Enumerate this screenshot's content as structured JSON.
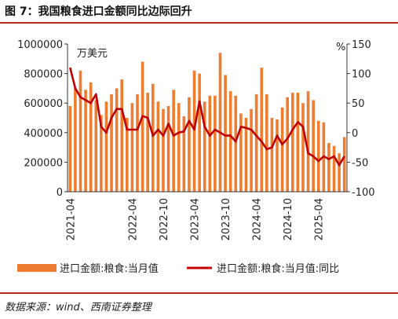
{
  "header": {
    "title": "图 7：我国粮食进口金额同比边际回升"
  },
  "footer": {
    "source": "数据来源：wind、西南证券整理"
  },
  "colors": {
    "bar": "#ed7d31",
    "line": "#c00000",
    "rule": "#c0281f"
  },
  "chart_data": {
    "type": "bar+line",
    "title": "",
    "x_tick_labels": [
      "2021-04",
      "2022-04",
      "2022-10",
      "2023-04",
      "2023-10",
      "2024-04",
      "2024-10",
      "2025-04"
    ],
    "x_tick_indices": [
      0,
      12,
      18,
      24,
      30,
      36,
      42,
      48
    ],
    "left_axis": {
      "unit": "万美元",
      "ylim": [
        0,
        1000000
      ],
      "ticks": [
        0,
        200000,
        400000,
        600000,
        800000,
        1000000
      ],
      "tick_labels": [
        "0",
        "200000",
        "400000",
        "600000",
        "800000",
        "1000000"
      ]
    },
    "right_axis": {
      "unit": "%",
      "ylim": [
        -100,
        150
      ],
      "ticks": [
        -100,
        -50,
        0,
        50,
        100,
        150
      ],
      "tick_labels": [
        "-100",
        "-50",
        "0",
        "50",
        "100",
        "150"
      ]
    },
    "legend_position": "bottom",
    "series": [
      {
        "name": "进口金额:粮食:当月值",
        "type": "bar",
        "axis": "left",
        "values": [
          580000,
          700000,
          820000,
          690000,
          740000,
          620000,
          520000,
          610000,
          660000,
          700000,
          760000,
          500000,
          600000,
          660000,
          880000,
          670000,
          730000,
          610000,
          560000,
          580000,
          690000,
          600000,
          510000,
          640000,
          820000,
          800000,
          610000,
          650000,
          650000,
          940000,
          790000,
          680000,
          650000,
          530000,
          500000,
          560000,
          660000,
          840000,
          660000,
          500000,
          490000,
          570000,
          640000,
          670000,
          670000,
          600000,
          680000,
          620000,
          480000,
          470000,
          330000,
          310000,
          260000,
          370000
        ]
      },
      {
        "name": "进口金额:粮食:当月值:同比",
        "type": "line",
        "axis": "right",
        "values": [
          110,
          75,
          60,
          55,
          50,
          65,
          10,
          0,
          25,
          40,
          40,
          5,
          5,
          5,
          28,
          25,
          -5,
          5,
          -5,
          15,
          -5,
          0,
          2,
          20,
          5,
          53,
          10,
          -5,
          5,
          0,
          -5,
          -5,
          -15,
          10,
          8,
          5,
          -5,
          -15,
          -28,
          -25,
          -5,
          -20,
          -10,
          5,
          18,
          10,
          -35,
          -40,
          -48,
          -40,
          -45,
          -40,
          -55,
          -40
        ]
      }
    ]
  }
}
